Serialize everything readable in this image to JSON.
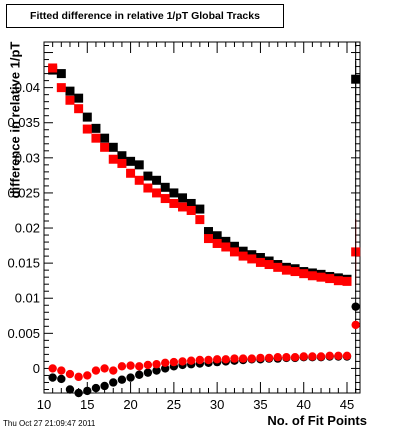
{
  "chart_data": {
    "type": "scatter",
    "title": "Fitted difference in relative 1/pT  Global Tracks",
    "xlabel": "No. of Fit Points",
    "ylabel": "difference in relative 1/pT",
    "xlim": [
      10,
      46.5
    ],
    "ylim": [
      -0.0035,
      0.0465
    ],
    "xticks": [
      10,
      15,
      20,
      25,
      30,
      35,
      40,
      45
    ],
    "yticks": [
      0,
      0.005,
      0.01,
      0.015,
      0.02,
      0.025,
      0.03,
      0.035,
      0.04
    ],
    "ytick_labels": [
      "0",
      "0.005",
      "0.01",
      "0.015",
      "0.02",
      "0.025",
      "0.03",
      "0.035",
      "0.04"
    ],
    "series": [
      {
        "marker": "square",
        "color": "#000000",
        "x": [
          11,
          12,
          13,
          14,
          15,
          16,
          17,
          18,
          19,
          20,
          21,
          22,
          23,
          24,
          25,
          26,
          27,
          28,
          29,
          30,
          31,
          32,
          33,
          34,
          35,
          36,
          37,
          38,
          39,
          40,
          41,
          42,
          43,
          44,
          45,
          46
        ],
        "y": [
          0.0425,
          0.042,
          0.0395,
          0.0385,
          0.0358,
          0.0342,
          0.0328,
          0.0315,
          0.0303,
          0.0295,
          0.029,
          0.0274,
          0.0268,
          0.0258,
          0.025,
          0.0243,
          0.0235,
          0.0227,
          0.0195,
          0.0189,
          0.0181,
          0.0174,
          0.0167,
          0.0162,
          0.0158,
          0.0153,
          0.0148,
          0.0144,
          0.0142,
          0.0138,
          0.0136,
          0.0134,
          0.0131,
          0.0129,
          0.0127,
          0.0412
        ],
        "err": [
          0,
          0,
          0,
          0,
          0,
          0,
          0,
          0,
          0,
          0,
          0,
          0,
          0,
          0,
          0,
          0,
          0,
          0,
          0,
          0,
          0,
          0,
          0,
          0,
          0,
          0,
          0,
          0,
          0,
          0,
          0,
          0,
          0,
          0,
          0,
          0.0063
        ]
      },
      {
        "marker": "square",
        "color": "#ff0000",
        "x": [
          11,
          12,
          13,
          14,
          15,
          16,
          17,
          18,
          19,
          20,
          21,
          22,
          23,
          24,
          25,
          26,
          27,
          28,
          29,
          30,
          31,
          32,
          33,
          34,
          35,
          36,
          37,
          38,
          39,
          40,
          41,
          42,
          43,
          44,
          45,
          46
        ],
        "y": [
          0.0428,
          0.04,
          0.0382,
          0.037,
          0.0341,
          0.0328,
          0.0315,
          0.0298,
          0.0292,
          0.0278,
          0.0268,
          0.0257,
          0.025,
          0.0242,
          0.0235,
          0.023,
          0.0225,
          0.0212,
          0.0185,
          0.0178,
          0.0173,
          0.0166,
          0.016,
          0.0156,
          0.0151,
          0.0148,
          0.0144,
          0.014,
          0.0138,
          0.0135,
          0.0132,
          0.013,
          0.0128,
          0.0125,
          0.0124,
          0.0166
        ],
        "err": [
          0,
          0,
          0,
          0,
          0,
          0,
          0,
          0,
          0,
          0,
          0,
          0,
          0,
          0,
          0,
          0,
          0,
          0,
          0,
          0,
          0,
          0,
          0,
          0,
          0,
          0,
          0,
          0,
          0,
          0,
          0,
          0,
          0,
          0,
          0,
          0.0047
        ]
      },
      {
        "marker": "circle",
        "color": "#000000",
        "x": [
          11,
          12,
          13,
          14,
          15,
          16,
          17,
          18,
          19,
          20,
          21,
          22,
          23,
          24,
          25,
          26,
          27,
          28,
          29,
          30,
          31,
          32,
          33,
          34,
          35,
          36,
          37,
          38,
          39,
          40,
          41,
          42,
          43,
          44,
          45,
          46
        ],
        "y": [
          -0.0013,
          -0.0015,
          -0.003,
          -0.0035,
          -0.0032,
          -0.0028,
          -0.0025,
          -0.002,
          -0.0016,
          -0.0013,
          -0.0009,
          -0.0006,
          -0.0003,
          0.0,
          0.0003,
          0.0005,
          0.0006,
          0.0007,
          0.0008,
          0.0009,
          0.001,
          0.0011,
          0.0012,
          0.0013,
          0.0013,
          0.0014,
          0.0014,
          0.0015,
          0.0015,
          0.0016,
          0.0016,
          0.0016,
          0.0017,
          0.0017,
          0.0017,
          0.0088
        ],
        "err": [
          0,
          0,
          0,
          0,
          0,
          0,
          0,
          0,
          0,
          0,
          0,
          0,
          0,
          0,
          0,
          0,
          0,
          0,
          0,
          0,
          0,
          0,
          0,
          0,
          0,
          0,
          0,
          0,
          0,
          0,
          0,
          0,
          0,
          0,
          0,
          0.035
        ]
      },
      {
        "marker": "circle",
        "color": "#ff0000",
        "x": [
          11,
          12,
          13,
          14,
          15,
          16,
          17,
          18,
          19,
          20,
          21,
          22,
          23,
          24,
          25,
          26,
          27,
          28,
          29,
          30,
          31,
          32,
          33,
          34,
          35,
          36,
          37,
          38,
          39,
          40,
          41,
          42,
          43,
          44,
          45,
          46
        ],
        "y": [
          0.0,
          -0.0003,
          -0.0008,
          -0.0012,
          -0.001,
          -0.0003,
          0.0,
          -0.0003,
          0.0003,
          0.0004,
          0.0003,
          0.0005,
          0.0006,
          0.0008,
          0.0009,
          0.001,
          0.0011,
          0.0012,
          0.0012,
          0.0013,
          0.0013,
          0.0014,
          0.0014,
          0.0014,
          0.0015,
          0.0015,
          0.0016,
          0.0016,
          0.0016,
          0.0017,
          0.0017,
          0.0017,
          0.0018,
          0.0018,
          0.0018,
          0.0062
        ],
        "err": [
          0,
          0,
          0,
          0,
          0,
          0,
          0,
          0,
          0,
          0,
          0,
          0,
          0,
          0,
          0,
          0,
          0,
          0,
          0,
          0,
          0,
          0,
          0,
          0,
          0,
          0,
          0,
          0,
          0,
          0,
          0,
          0,
          0,
          0,
          0,
          0.0
        ]
      }
    ]
  },
  "timestamp": "Thu Oct 27 21:09:47 2011"
}
